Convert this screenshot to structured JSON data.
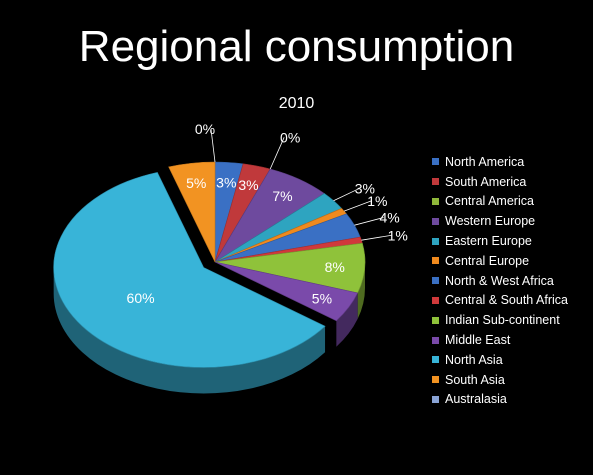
{
  "chart_data": {
    "type": "pie",
    "title": "Regional consumption",
    "subtitle": "2010",
    "legend_position": "right",
    "exploded_slice": "North Asia",
    "slices": [
      {
        "name": "North America",
        "value": 3,
        "label": "3%",
        "color": "#3a70c4"
      },
      {
        "name": "South America",
        "value": 3,
        "label": "3%",
        "color": "#c0393b"
      },
      {
        "name": "Central America",
        "value": 0,
        "label": "0%",
        "color": "#8fb83a"
      },
      {
        "name": "Western Europe",
        "value": 7,
        "label": "7%",
        "color": "#6e4a9e"
      },
      {
        "name": "Eastern Europe",
        "value": 3,
        "label": "3%",
        "color": "#2ea4c0"
      },
      {
        "name": "Central Europe",
        "value": 1,
        "label": "1%",
        "color": "#f08a1e"
      },
      {
        "name": "North & West Africa",
        "value": 4,
        "label": "4%",
        "color": "#3a70c4"
      },
      {
        "name": "Central & South Africa",
        "value": 1,
        "label": "1%",
        "color": "#d0393b"
      },
      {
        "name": "Indian Sub-continent",
        "value": 8,
        "label": "8%",
        "color": "#8fc23a"
      },
      {
        "name": "Middle East",
        "value": 5,
        "label": "5%",
        "color": "#7a4aaa"
      },
      {
        "name": "North Asia",
        "value": 60,
        "label": "60%",
        "color": "#38b4d8"
      },
      {
        "name": "South Asia",
        "value": 5,
        "label": "5%",
        "color": "#f29322"
      },
      {
        "name": "Australasia",
        "value": 0,
        "label": "0%",
        "color": "#8aa4d6"
      }
    ]
  }
}
